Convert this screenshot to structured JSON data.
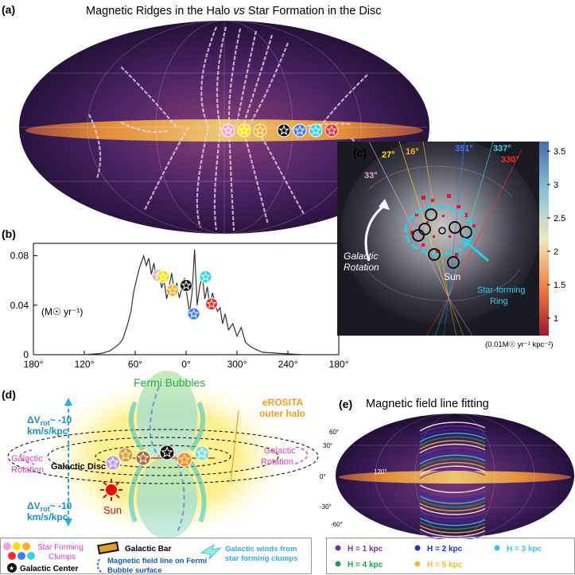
{
  "panel_a": {
    "label": "(a)",
    "title": "Magnetic Ridges in the Halo vs Star Formation in the Disc",
    "title_pre": "Magnetic Ridges in the Halo ",
    "title_vs": "vs",
    "title_post": " Star Formation in the Disc"
  },
  "panel_b": {
    "label": "(b)",
    "ylabel": "(M☉ yr⁻¹)"
  },
  "panel_c": {
    "label": "(c)",
    "angles": [
      {
        "text": "33°",
        "color": "#f2a0d8"
      },
      {
        "text": "27°",
        "color": "#ffe000"
      },
      {
        "text": "16°",
        "color": "#ffb020"
      },
      {
        "text": "351°",
        "color": "#3d7bff"
      },
      {
        "text": "337°",
        "color": "#2ed8e8"
      },
      {
        "text": "330°",
        "color": "#ff2a2a"
      }
    ],
    "galactic_rotation": "Galactic Rotation",
    "galactic_rotation_l1": "Galactic",
    "galactic_rotation_l2": "Rotation",
    "sun": "Sun",
    "star_forming_ring_l1": "Star-forming",
    "star_forming_ring_l2": "Ring",
    "colorbar_ticks": [
      "3.5",
      "3",
      "2.5",
      "2",
      "1.5",
      "1"
    ],
    "colorbar_unit": "(0.01M☉ yr⁻¹ kpc⁻²)"
  },
  "panel_d": {
    "label": "(d)",
    "fermi_bubbles": "Fermi Bubbles",
    "erosita_l1": "eROSITA",
    "erosita_l2": "outer halo",
    "dv_top_l1": "ΔV",
    "dv_top_sub": "rot",
    "dv_top_l1b": "~ -10",
    "dv_top_l2": "km/s/kpc",
    "dv_bot_l1": "ΔV",
    "dv_bot_sub": "rot",
    "dv_bot_l1b": "~ -10",
    "dv_bot_l2": "km/s/kpc",
    "galactic_rotation_l1": "Galactic",
    "galactic_rotation_l2": "Rotation",
    "galactic_disc": "Galactic Disc",
    "sun": "Sun"
  },
  "panel_e": {
    "label": "(e)",
    "title": "Magnetic field line fitting",
    "lat_ticks": [
      "60°",
      "30°",
      "0°",
      "-30°",
      "-60°"
    ],
    "lon_tick": "120°"
  },
  "legend_left": {
    "star_forming_l1": "Star Forming",
    "star_forming_l2": "Clumps",
    "galactic_bar": "Galactic Bar",
    "galactic_center": "Galactic Center",
    "mag_field_l1": "Magnetic field line on Fermi",
    "mag_field_l2": "Bubble surface",
    "winds_l1": "Galactic winds from",
    "winds_l2": "star forming clumps"
  },
  "legend_right": {
    "items": [
      {
        "text": "H = 1 kpc",
        "color": "#7a2ea0"
      },
      {
        "text": "H = 2 kpc",
        "color": "#1a2fd8"
      },
      {
        "text": "H = 3 kpc",
        "color": "#38c8e8"
      },
      {
        "text": "H = 4 kpc",
        "color": "#1aa050"
      },
      {
        "text": "H = 5 kpc",
        "color": "#f0c020"
      }
    ]
  },
  "chart_data": {
    "type": "line",
    "title": "",
    "xlabel": "",
    "ylabel": "(M☉ yr⁻¹)",
    "x_ticks": [
      "180°",
      "120°",
      "60°",
      "0°",
      "300°",
      "240°",
      "180°"
    ],
    "y_ticks": [
      "0",
      "0.04",
      "0.08"
    ],
    "ylim": [
      0,
      0.09
    ],
    "xlim_longitude_deg": [
      180,
      -180
    ],
    "series": [
      {
        "name": "",
        "x": [
          180,
          150,
          120,
          100,
          90,
          80,
          75,
          70,
          65,
          62,
          58,
          55,
          50,
          47,
          44,
          41,
          38,
          35,
          32,
          29,
          26,
          23,
          20,
          17,
          14,
          11,
          8,
          5,
          2,
          -1,
          -4,
          -7,
          -10,
          -13,
          -16,
          -19,
          -22,
          -25,
          -28,
          -31,
          -34,
          -37,
          -40,
          -43,
          -46,
          -50,
          -55,
          -60,
          -65,
          -70,
          -75,
          -80,
          -90,
          -110,
          -140,
          -180
        ],
        "y": [
          0.0,
          0.0,
          0.0,
          0.001,
          0.003,
          0.008,
          0.012,
          0.022,
          0.035,
          0.05,
          0.062,
          0.07,
          0.08,
          0.072,
          0.078,
          0.065,
          0.074,
          0.06,
          0.068,
          0.054,
          0.06,
          0.045,
          0.055,
          0.066,
          0.05,
          0.058,
          0.046,
          0.054,
          0.062,
          0.048,
          0.034,
          0.05,
          0.085,
          0.04,
          0.055,
          0.064,
          0.045,
          0.055,
          0.038,
          0.05,
          0.042,
          0.035,
          0.038,
          0.025,
          0.033,
          0.02,
          0.025,
          0.015,
          0.022,
          0.01,
          0.007,
          0.005,
          0.002,
          0.001,
          0.0,
          0.0
        ]
      }
    ],
    "markers": [
      {
        "x": 33,
        "y": 0.064,
        "color": "#f2a0d8"
      },
      {
        "x": 27,
        "y": 0.063,
        "color": "#ffe000"
      },
      {
        "x": 16,
        "y": 0.052,
        "color": "#ffb020"
      },
      {
        "x": 0,
        "y": 0.056,
        "color": "#111111"
      },
      {
        "x": -9,
        "y": 0.033,
        "color": "#3d7bff"
      },
      {
        "x": -23,
        "y": 0.063,
        "color": "#2ed8e8"
      },
      {
        "x": -30,
        "y": 0.041,
        "color": "#ff2a2a"
      }
    ]
  }
}
